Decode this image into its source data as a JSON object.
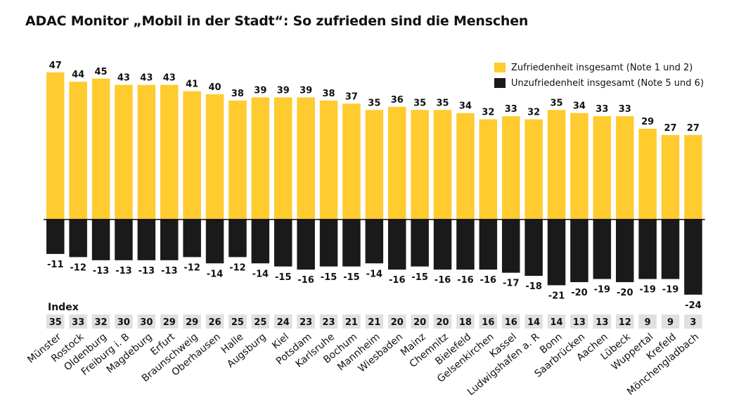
{
  "title": "ADAC Monitor „Mobil in der Stadt“: So zufrieden sind die Menschen",
  "colors": {
    "positive": "#FFCB2E",
    "negative": "#1A1A1A",
    "index_box": "#E0E0E0",
    "axis": "#000000"
  },
  "index_label": "Index",
  "legend": [
    {
      "label": "Zufriedenheit insgesamt (Note 1 und 2)",
      "color": "#FFCB2E"
    },
    {
      "label": "Unzufriedenheit insgesamt (Note 5 und 6)",
      "color": "#1A1A1A"
    }
  ],
  "chart_data": {
    "type": "bar",
    "title": "ADAC Monitor „Mobil in der Stadt“: So zufrieden sind die Menschen",
    "categories": [
      "Münster",
      "Rostock",
      "Oldenburg",
      "Freiburg i. B",
      "Magdeburg",
      "Erfurt",
      "Braunschweig",
      "Oberhausen",
      "Halle",
      "Augsburg",
      "Kiel",
      "Potsdam",
      "Karlsruhe",
      "Bochum",
      "Mannheim",
      "Wiesbaden",
      "Mainz",
      "Chemnitz",
      "Bielefeld",
      "Gelsenkirchen",
      "Kassel",
      "Ludwigshafen a. R",
      "Bonn",
      "Saarbrücken",
      "Aachen",
      "Lübeck",
      "Wuppertal",
      "Krefeld",
      "Mönchengladbach"
    ],
    "series": [
      {
        "name": "Zufriedenheit insgesamt (Note 1 und 2)",
        "values": [
          47,
          44,
          45,
          43,
          43,
          43,
          41,
          40,
          38,
          39,
          39,
          39,
          38,
          37,
          35,
          36,
          35,
          35,
          34,
          32,
          33,
          32,
          35,
          34,
          33,
          33,
          29,
          27,
          27
        ]
      },
      {
        "name": "Unzufriedenheit insgesamt (Note 5 und 6)",
        "values": [
          -11,
          -12,
          -13,
          -13,
          -13,
          -13,
          -12,
          -14,
          -12,
          -14,
          -15,
          -16,
          -15,
          -15,
          -14,
          -16,
          -15,
          -16,
          -16,
          -16,
          -17,
          -18,
          -21,
          -20,
          -19,
          -20,
          -19,
          -19,
          -24
        ]
      },
      {
        "name": "Index",
        "values": [
          35,
          33,
          32,
          30,
          30,
          29,
          29,
          26,
          25,
          25,
          24,
          23,
          23,
          21,
          21,
          20,
          20,
          20,
          18,
          16,
          16,
          14,
          14,
          13,
          13,
          12,
          9,
          9,
          3
        ]
      }
    ],
    "legend_position": "top-right",
    "grid": false
  }
}
